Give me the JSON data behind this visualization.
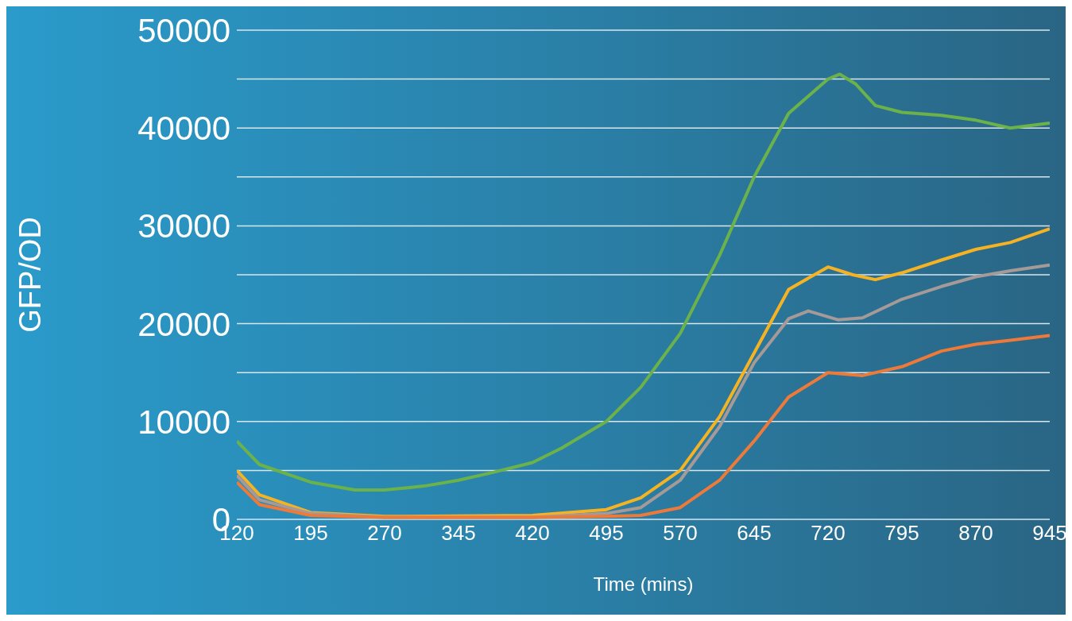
{
  "chart_data": {
    "type": "line",
    "xlabel": "Time (mins)",
    "ylabel": "GFP/OD",
    "xlim": [
      120,
      945
    ],
    "xticks": [
      120,
      195,
      270,
      345,
      420,
      495,
      570,
      645,
      720,
      795,
      870,
      945
    ],
    "ylim": [
      0,
      50000
    ],
    "yticks": [
      0,
      {
        "value": 5000,
        "label": null
      },
      10000,
      {
        "value": 15000,
        "label": null
      },
      20000,
      {
        "value": 25000,
        "label": null
      },
      30000,
      {
        "value": 35000,
        "label": null
      },
      40000,
      {
        "value": 45000,
        "label": null
      },
      50000
    ],
    "grid": "y",
    "legend": false,
    "marker": "none",
    "line_style": "solid",
    "series": [
      {
        "color": "#6cb24a",
        "x": [
          120,
          143,
          195,
          240,
          270,
          310,
          345,
          380,
          420,
          450,
          495,
          530,
          570,
          610,
          645,
          680,
          720,
          732,
          748,
          768,
          795,
          835,
          870,
          905,
          945
        ],
        "values": [
          8000,
          5600,
          3800,
          3000,
          3000,
          3400,
          4000,
          4800,
          5800,
          7300,
          10000,
          13500,
          19000,
          27000,
          35000,
          41500,
          45000,
          45500,
          44500,
          42300,
          41600,
          41300,
          40800,
          40000,
          40500
        ]
      },
      {
        "color": "#f5b324",
        "x": [
          120,
          143,
          195,
          270,
          420,
          495,
          530,
          570,
          610,
          645,
          680,
          720,
          745,
          768,
          795,
          835,
          870,
          905,
          945
        ],
        "values": [
          5000,
          2500,
          700,
          300,
          400,
          1000,
          2200,
          5000,
          10500,
          17000,
          23500,
          25800,
          25000,
          24500,
          25200,
          26500,
          27600,
          28300,
          29700
        ]
      },
      {
        "color": "#a59a98",
        "x": [
          120,
          143,
          195,
          270,
          420,
          495,
          530,
          570,
          610,
          645,
          680,
          700,
          730,
          755,
          795,
          835,
          870,
          905,
          945
        ],
        "values": [
          4500,
          2000,
          600,
          200,
          200,
          600,
          1200,
          4000,
          9500,
          16000,
          20500,
          21300,
          20400,
          20600,
          22500,
          23800,
          24800,
          25400,
          26000
        ]
      },
      {
        "color": "#ee7a3a",
        "x": [
          120,
          143,
          195,
          270,
          420,
          495,
          530,
          570,
          610,
          645,
          680,
          720,
          755,
          795,
          835,
          870,
          905,
          945
        ],
        "values": [
          3800,
          1500,
          400,
          200,
          200,
          300,
          400,
          1200,
          4000,
          8000,
          12500,
          15000,
          14700,
          15600,
          17200,
          17900,
          18300,
          18800
        ]
      }
    ]
  }
}
